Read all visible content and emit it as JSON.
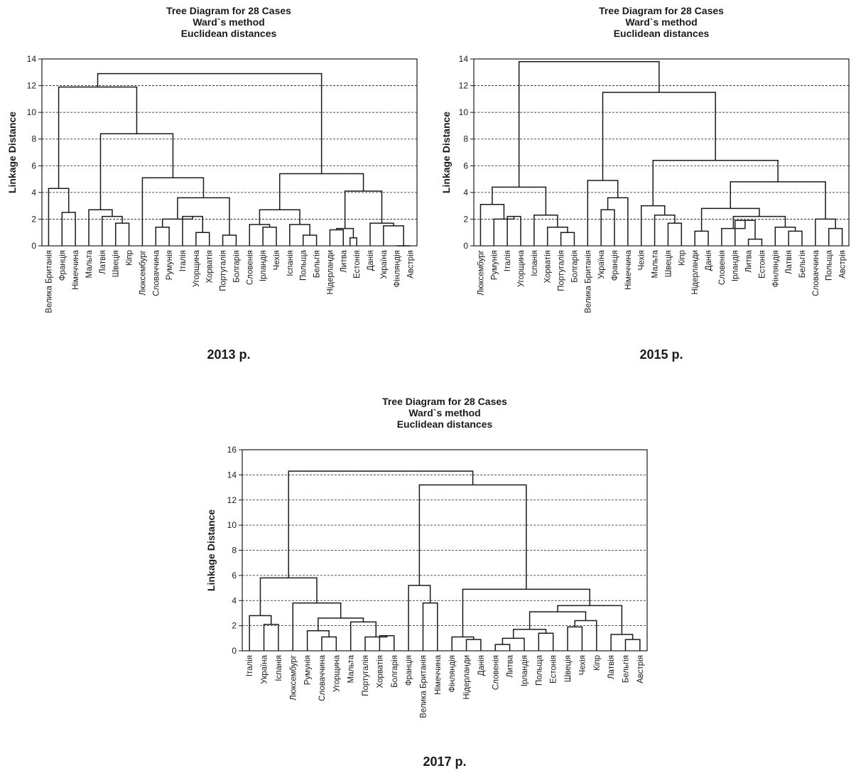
{
  "chart_data": [
    {
      "type": "dendrogram",
      "title": [
        "Tree Diagram for 28 Cases",
        "Ward`s method",
        "Euclidean distances"
      ],
      "ylabel": "Linkage Distance",
      "caption": "2013 р.",
      "ylim": [
        0,
        14
      ],
      "yticks": [
        0,
        2,
        4,
        6,
        8,
        10,
        12,
        14
      ],
      "grid": true,
      "leaves": [
        "Велика Британія",
        "Франція",
        "Німеччина",
        "Мальта",
        "Латвія",
        "Швеція",
        "Кіпр",
        "Люксембург",
        "Словаччина",
        "Румунія",
        "Італія",
        "Угорщина",
        "Хорватія",
        "Португалія",
        "Болгарія",
        "Словенія",
        "Ірландія",
        "Чехія",
        "Іспанія",
        "Польща",
        "Бельгія",
        "Нідерланди",
        "Литва",
        "Естонія",
        "Данія",
        "Україна",
        "Фінляндія",
        "Австрія"
      ],
      "merges": [
        [
          22,
          23,
          0.6
        ],
        [
          1,
          2,
          2.5
        ],
        [
          0,
          29,
          4.3
        ],
        [
          5,
          6,
          1.7
        ],
        [
          4,
          31,
          2.2
        ],
        [
          3,
          32,
          2.7
        ],
        [
          9,
          10,
          2.0
        ],
        [
          8,
          34,
          1.4
        ],
        [
          11,
          12,
          1.0
        ],
        [
          35,
          36,
          2.2
        ],
        [
          37,
          14,
          3.6
        ],
        [
          7,
          38,
          5.2
        ],
        [
          33,
          39,
          8.4
        ],
        [
          30,
          40,
          12.0
        ],
        [
          16,
          17,
          1.5
        ],
        [
          15,
          42,
          1.6
        ],
        [
          19,
          20,
          0.8
        ],
        [
          18,
          44,
          1.6
        ],
        [
          43,
          45,
          2.7
        ],
        [
          21,
          22,
          1.2
        ],
        [
          46,
          23,
          1.4
        ],
        [
          26,
          27,
          1.5
        ],
        [
          25,
          48,
          1.8
        ],
        [
          47,
          49,
          4.1
        ],
        [
          24,
          50,
          4.1
        ],
        [
          51,
          50,
          4.1
        ]
      ],
      "cuts": "see render"
    },
    {
      "type": "dendrogram",
      "title": [
        "Tree Diagram for 28 Cases",
        "Ward`s method",
        "Euclidean distances"
      ],
      "ylabel": "Linkage Distance",
      "caption": "2015 р.",
      "ylim": [
        0,
        14
      ],
      "yticks": [
        0,
        2,
        4,
        6,
        8,
        10,
        12,
        14
      ],
      "grid": true,
      "leaves": [
        "Люксембург",
        "Румунія",
        "Італія",
        "Угорщина",
        "Іспанія",
        "Хорватія",
        "Португалія",
        "Болгарія",
        "Велика Британія",
        "Україна",
        "Франція",
        "Німеччина",
        "Чехія",
        "Мальта",
        "Швеція",
        "Кіпр",
        "Нідерланди",
        "Данія",
        "Словенія",
        "Ірландія",
        "Литва",
        "Естонія",
        "Фінляндія",
        "Латвія",
        "Бельгія",
        "Словаччина",
        "Польща",
        "Австрія"
      ]
    },
    {
      "type": "dendrogram",
      "title": [
        "Tree Diagram for 28 Cases",
        "Ward`s method",
        "Euclidean distances"
      ],
      "ylabel": "Linkage Distance",
      "caption": "2017 р.",
      "ylim": [
        0,
        16
      ],
      "yticks": [
        0,
        2,
        4,
        6,
        8,
        10,
        12,
        14,
        16
      ],
      "grid": true,
      "leaves": [
        "Італія",
        "Україна",
        "Іспанія",
        "Люксембург",
        "Румунія",
        "Словаччина",
        "Угорщина",
        "Мальта",
        "Португалія",
        "Хорватія",
        "Болгарія",
        "Франція",
        "Велика Британія",
        "Німеччина",
        "Фінляндія",
        "Нідерланди",
        "Данія",
        "Словенія",
        "Литва",
        "Ірландія",
        "Польща",
        "Естонія",
        "Швеція",
        "Чехія",
        "Кіпр",
        "Латвія",
        "Бельгія",
        "Австрія"
      ]
    }
  ]
}
